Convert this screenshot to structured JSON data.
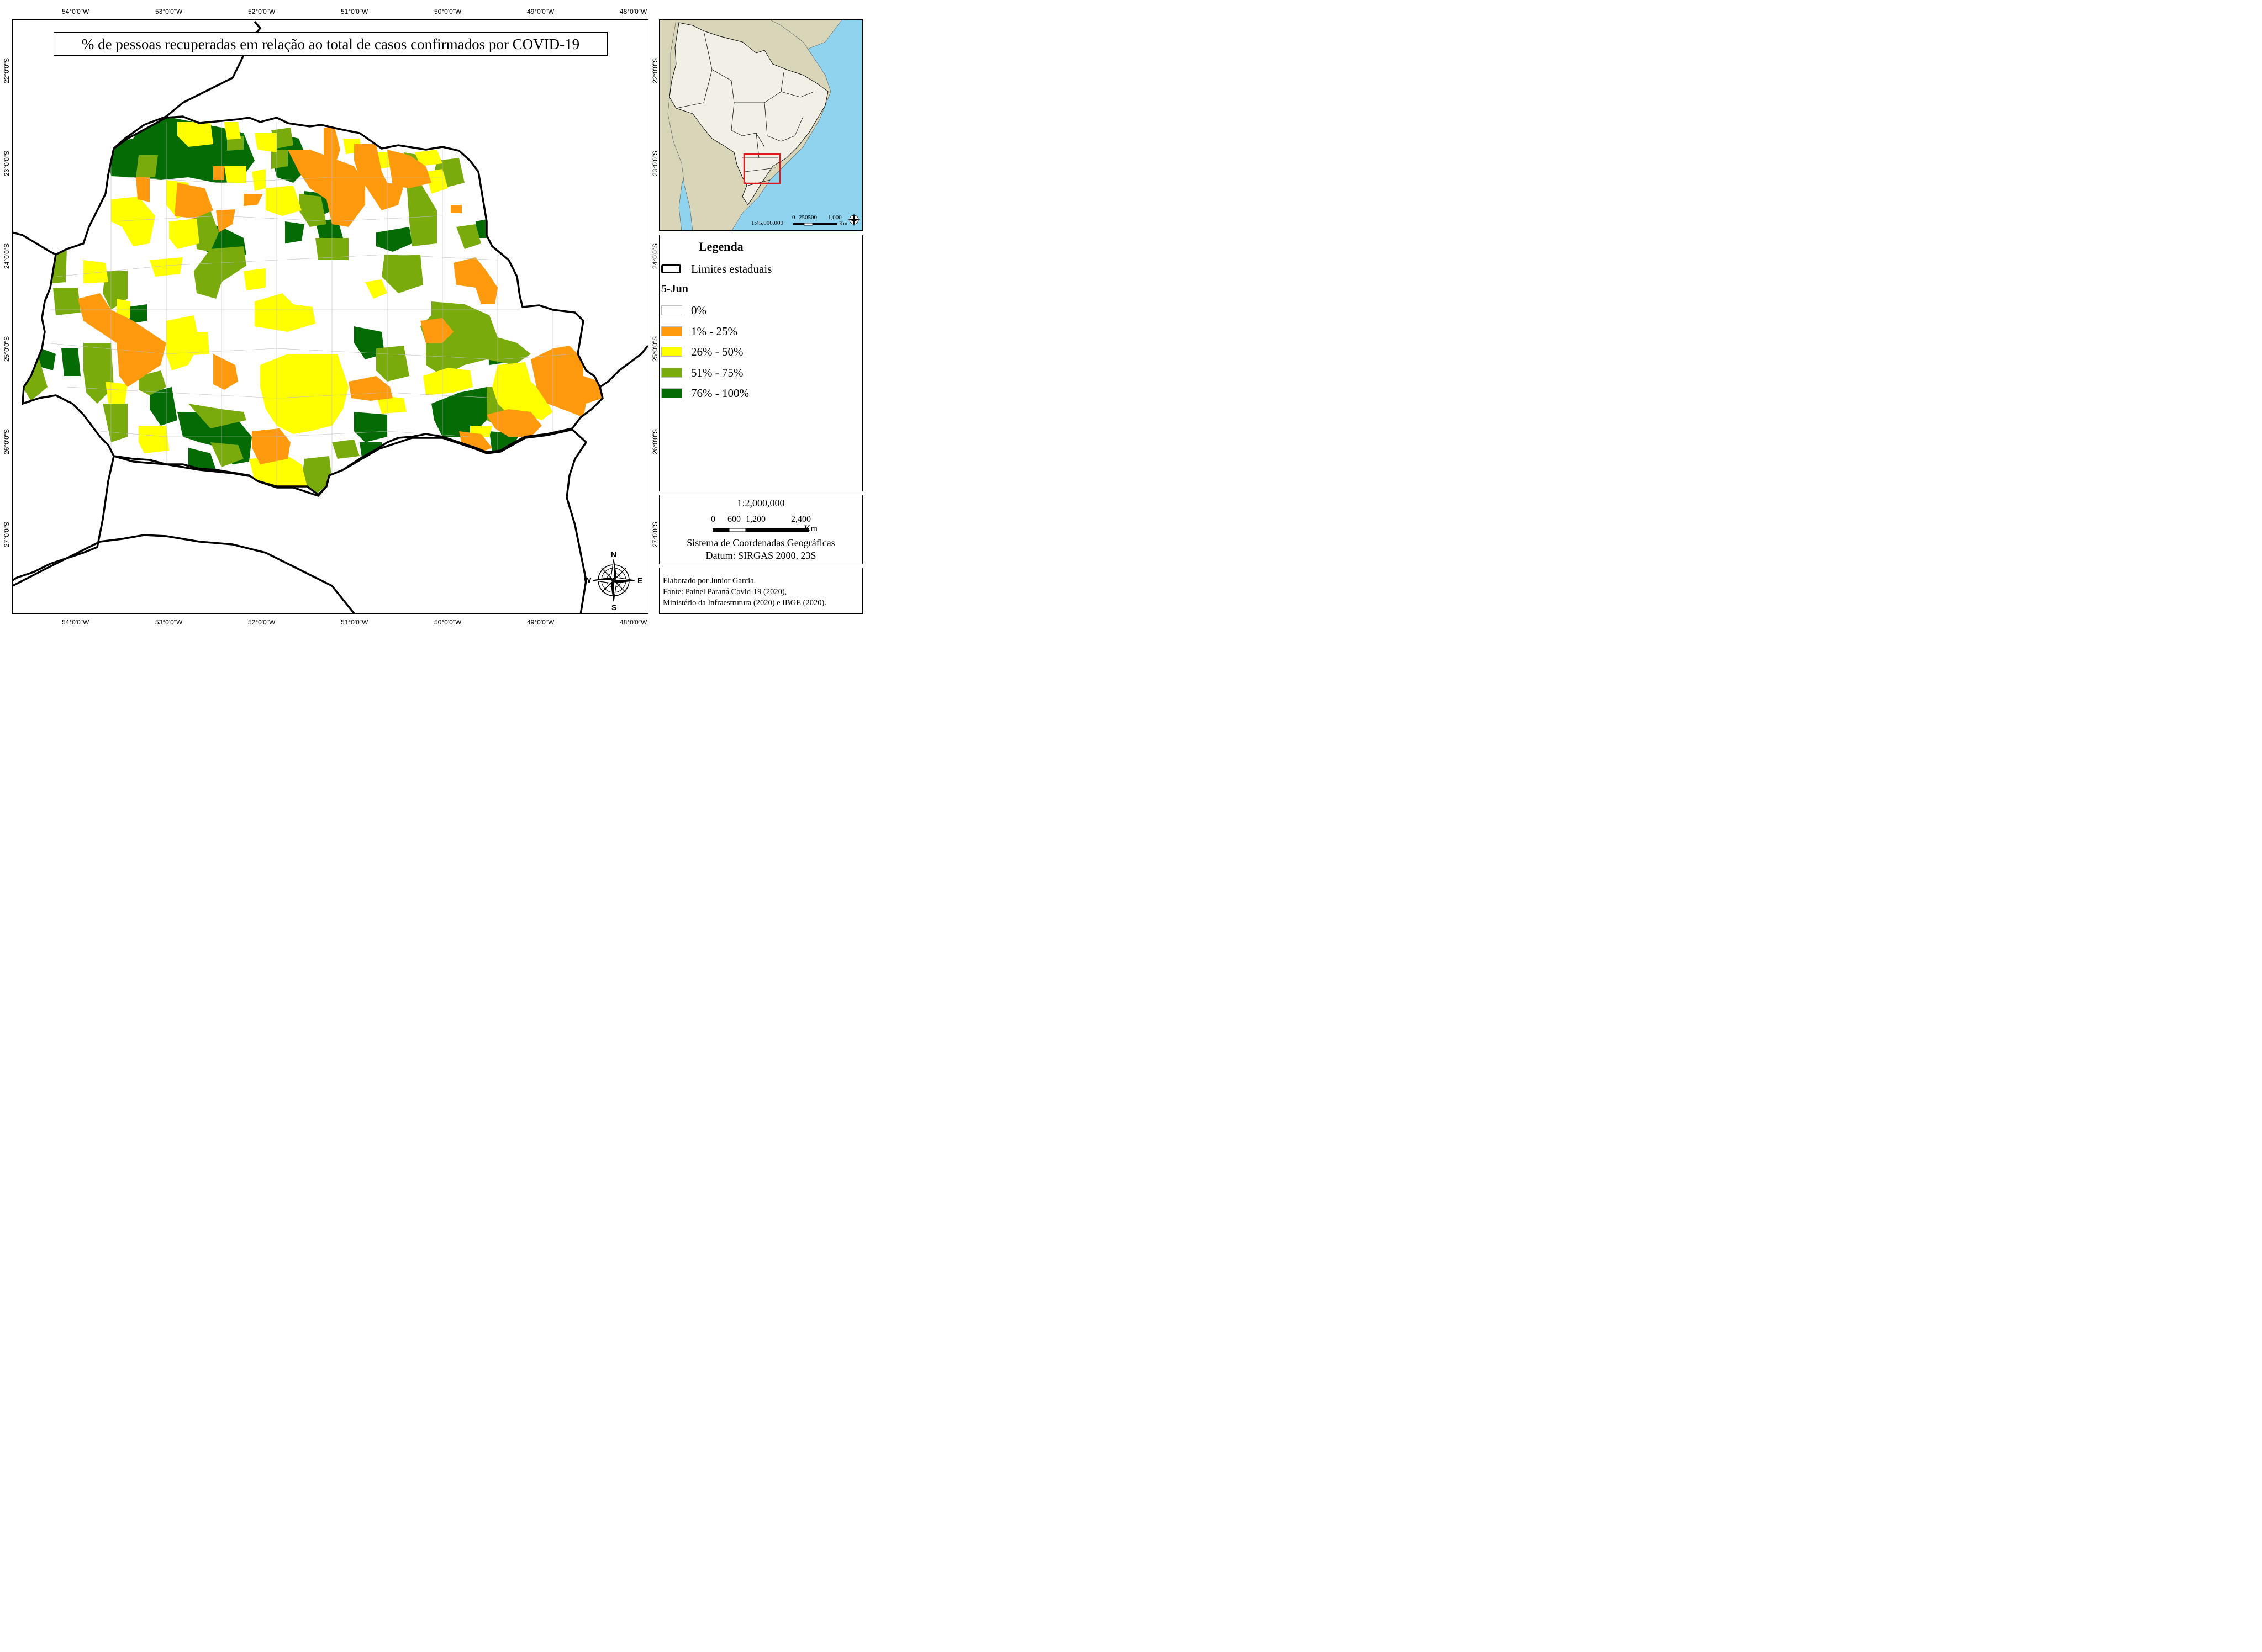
{
  "main_map": {
    "title": "% de pessoas recuperadas em relação ao total de casos confirmados por COVID-19",
    "longitude_ticks": [
      "54°0'0\"W",
      "53°0'0\"W",
      "52°0'0\"W",
      "51°0'0\"W",
      "50°0'0\"W",
      "49°0'0\"W",
      "48°0'0\"W"
    ],
    "latitude_ticks": [
      "22°0'0\"S",
      "23°0'0\"S",
      "24°0'0\"S",
      "25°0'0\"S",
      "26°0'0\"S",
      "27°0'0\"S"
    ],
    "compass": {
      "n": "N",
      "s": "S",
      "e": "E",
      "w": "W"
    }
  },
  "inset_map": {
    "latitude_ticks": [
      "22°0'0\"S",
      "23°0'0\"S",
      "24°0'0\"S",
      "25°0'0\"S",
      "26°0'0\"S",
      "27°0'0\"S"
    ],
    "scale_ratio": "1:45,000,000",
    "scale_labels": [
      "0",
      "250500",
      "1,000"
    ],
    "scale_unit": "Km",
    "highlight_color": "#e0191f",
    "ocean_color": "#8fd3ee",
    "land_color": "#d8d5b8",
    "brazil_color": "#f2f0e6"
  },
  "legend": {
    "title": "Legenda",
    "boundary_label": "Limites estaduais",
    "date_label": "5-Jun",
    "classes": [
      {
        "label": "0%",
        "color": "#ffffff"
      },
      {
        "label": "1% - 25%",
        "color": "#ff9a0f"
      },
      {
        "label": "26% - 50%",
        "color": "#ffff00"
      },
      {
        "label": "51% - 75%",
        "color": "#7aab0c"
      },
      {
        "label": "76% - 100%",
        "color": "#056b05"
      }
    ]
  },
  "scale_box": {
    "ratio": "1:2,000,000",
    "labels": [
      "0",
      "600",
      "1,200",
      "2,400"
    ],
    "unit": "Km",
    "coord_system": "Sistema de Coordenadas Geográficas",
    "datum": "Datum: SIRGAS 2000, 23S"
  },
  "credits": {
    "author": "Elaborado por Junior Garcia.",
    "source1": "Fonte: Painel Paraná Covid-19 (2020),",
    "source2": "Ministério da Infraestrutura (2020) e IBGE (2020)."
  }
}
